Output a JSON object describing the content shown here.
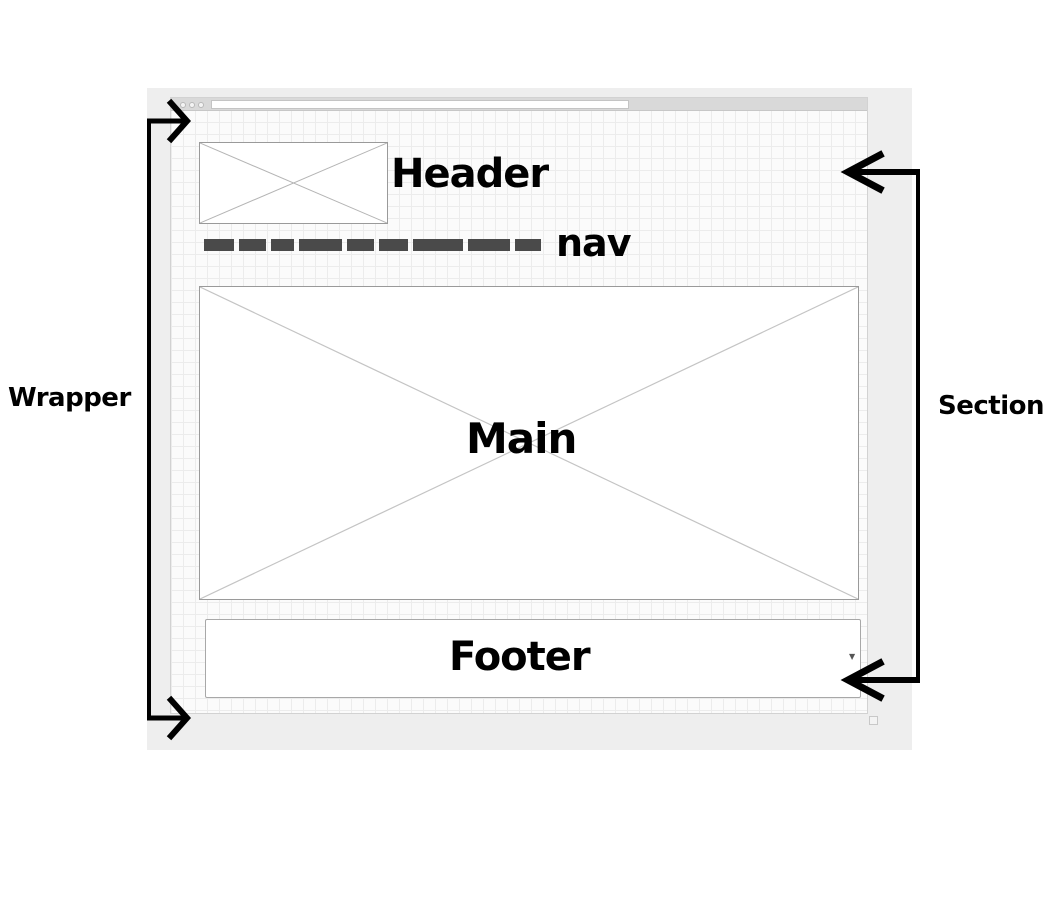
{
  "labels": {
    "header": "Header",
    "nav": "nav",
    "main": "Main",
    "footer": "Footer",
    "wrapper": "Wrapper",
    "section": "Section"
  },
  "icons": {
    "footer_dropdown": "caret-down-icon",
    "window_resize": "resize-grip-icon"
  },
  "colors": {
    "frame_background": "#eeeeee",
    "grid_line": "#ececec",
    "nav_segment": "#4a4a4a",
    "annotation": "#000000"
  }
}
